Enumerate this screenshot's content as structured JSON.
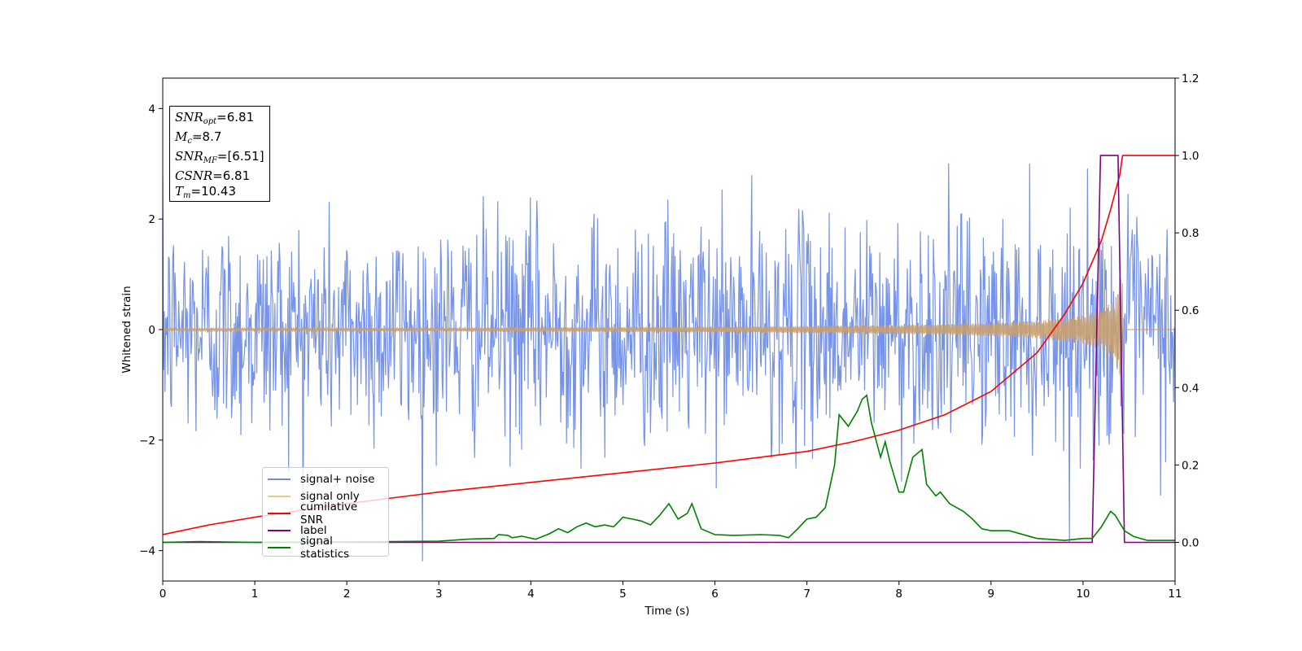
{
  "annotation": {
    "snr_opt": {
      "sym": "SNR",
      "sub": "opt",
      "value": "=6.81"
    },
    "mc": {
      "sym": "M",
      "sub": "c",
      "value": "=8.7"
    },
    "snr_mf": {
      "sym": "SNR",
      "sub": "MF",
      "value": "=[6.51]"
    },
    "csnr": {
      "sym": "CSNR",
      "value": "=6.81"
    },
    "tm": {
      "sym": "T",
      "sub": "m",
      "value": "=10.43"
    }
  },
  "legend": [
    {
      "label": "signal+ noise",
      "color": "#6f8de6"
    },
    {
      "label": "signal only",
      "color": "#f5c77e"
    },
    {
      "label": "cumilative SNR",
      "color": "#ff0000"
    },
    {
      "label": "label",
      "color": "#800080"
    },
    {
      "label": "signal statistics",
      "color": "#008000"
    }
  ],
  "chart_data": {
    "type": "line",
    "title": "",
    "xlabel": "Time (s)",
    "ylabel": "Whitened strain",
    "xlim": [
      0,
      11
    ],
    "ylim_left": [
      -4.55,
      4.55
    ],
    "ylim_right": [
      -0.1,
      1.2
    ],
    "x_ticks": [
      "0",
      "1",
      "2",
      "3",
      "4",
      "5",
      "6",
      "7",
      "8",
      "9",
      "10",
      "11"
    ],
    "y_left_ticks": [
      {
        "v": 4,
        "label": "4"
      },
      {
        "v": 2,
        "label": "2"
      },
      {
        "v": 0,
        "label": "0"
      },
      {
        "v": -2,
        "label": "−2"
      },
      {
        "v": -4,
        "label": "−4"
      }
    ],
    "y_right_ticks": [
      {
        "v": 1.2,
        "label": "1.2"
      },
      {
        "v": 1.0,
        "label": "1.0"
      },
      {
        "v": 0.8,
        "label": "0.8"
      },
      {
        "v": 0.6,
        "label": "0.6"
      },
      {
        "v": 0.4,
        "label": "0.4"
      },
      {
        "v": 0.2,
        "label": "0.2"
      },
      {
        "v": 0.0,
        "label": "0.0"
      }
    ],
    "grid": false,
    "legend_position": "lower-left",
    "series": [
      {
        "name": "signal+ noise",
        "axis": "left",
        "color": "#6f8de6",
        "description_stats": {
          "std": 1.0,
          "samples": 1400,
          "x_range": [
            0,
            11
          ]
        }
      },
      {
        "name": "signal only",
        "axis": "left",
        "color": "#f5c77e",
        "envelope": {
          "x": [
            0,
            3,
            6,
            8,
            9,
            9.5,
            10,
            10.2,
            10.35,
            10.43
          ],
          "amp": [
            0.02,
            0.03,
            0.05,
            0.08,
            0.12,
            0.16,
            0.26,
            0.36,
            0.55,
            1.05
          ]
        }
      },
      {
        "name": "cumilative SNR",
        "axis": "right",
        "color": "#ff0000",
        "x": [
          0,
          0.5,
          1,
          2,
          3,
          4,
          5,
          6,
          7,
          7.5,
          8,
          8.5,
          9,
          9.5,
          9.8,
          10,
          10.2,
          10.3,
          10.4,
          10.43,
          11
        ],
        "y": [
          0.02,
          0.045,
          0.065,
          0.1,
          0.13,
          0.155,
          0.18,
          0.205,
          0.235,
          0.26,
          0.29,
          0.33,
          0.39,
          0.49,
          0.59,
          0.67,
          0.78,
          0.86,
          0.95,
          1.0,
          1.0
        ]
      },
      {
        "name": "label",
        "axis": "right",
        "color": "#800080",
        "x": [
          0,
          10.1,
          10.19,
          10.38,
          10.45,
          11
        ],
        "y": [
          0,
          0,
          1.0,
          1.0,
          0,
          0
        ]
      },
      {
        "name": "signal statistics",
        "axis": "right",
        "color": "#008000",
        "x": [
          0,
          0.4,
          1,
          2,
          3,
          3.3,
          3.4,
          3.6,
          3.65,
          3.75,
          3.8,
          3.9,
          4.05,
          4.2,
          4.3,
          4.4,
          4.5,
          4.6,
          4.7,
          4.8,
          4.9,
          5.0,
          5.1,
          5.2,
          5.3,
          5.4,
          5.5,
          5.6,
          5.7,
          5.75,
          5.85,
          6.0,
          6.2,
          6.5,
          6.7,
          6.8,
          6.9,
          7.0,
          7.1,
          7.2,
          7.3,
          7.35,
          7.45,
          7.55,
          7.6,
          7.65,
          7.7,
          7.8,
          7.85,
          7.9,
          8.0,
          8.05,
          8.15,
          8.25,
          8.3,
          8.4,
          8.45,
          8.55,
          8.7,
          8.8,
          8.9,
          9.0,
          9.2,
          9.5,
          9.8,
          10.0,
          10.1,
          10.2,
          10.3,
          10.35,
          10.45,
          10.55,
          10.7,
          11
        ],
        "y": [
          0,
          0.002,
          0,
          0.001,
          0.003,
          0.008,
          0.009,
          0.01,
          0.02,
          0.018,
          0.012,
          0.016,
          0.008,
          0.022,
          0.035,
          0.025,
          0.04,
          0.05,
          0.04,
          0.045,
          0.04,
          0.065,
          0.06,
          0.055,
          0.045,
          0.07,
          0.1,
          0.06,
          0.075,
          0.1,
          0.035,
          0.02,
          0.018,
          0.02,
          0.018,
          0.012,
          0.035,
          0.06,
          0.065,
          0.09,
          0.2,
          0.33,
          0.3,
          0.34,
          0.37,
          0.38,
          0.31,
          0.22,
          0.26,
          0.21,
          0.13,
          0.13,
          0.22,
          0.24,
          0.15,
          0.12,
          0.13,
          0.1,
          0.08,
          0.06,
          0.035,
          0.03,
          0.03,
          0.01,
          0.005,
          0.01,
          0.01,
          0.04,
          0.08,
          0.07,
          0.03,
          0.015,
          0.005,
          0.005
        ]
      }
    ]
  }
}
